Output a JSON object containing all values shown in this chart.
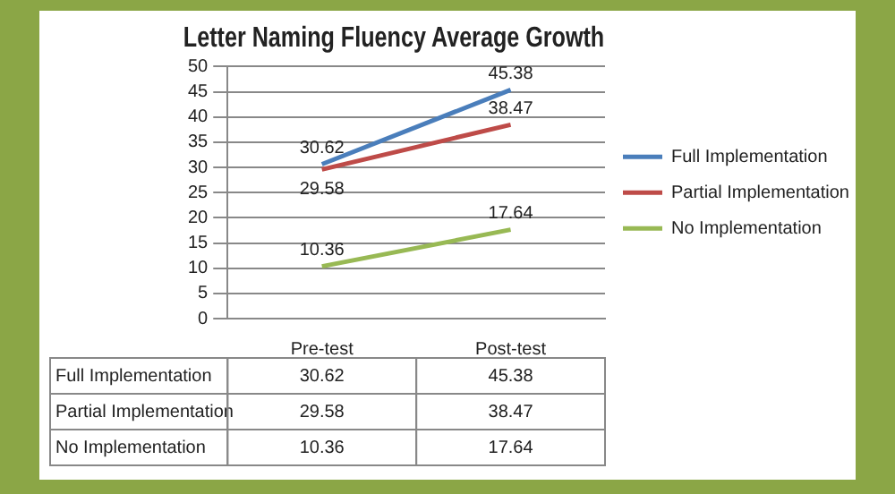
{
  "chart_data": {
    "type": "line",
    "title": "Letter Naming Fluency Average Growth",
    "categories": [
      "Pre-test",
      "Post-test"
    ],
    "series": [
      {
        "name": "Full Implementation",
        "color": "#4a7ebb",
        "values": [
          30.62,
          45.38
        ]
      },
      {
        "name": "Partial Implementation",
        "color": "#be4b48",
        "values": [
          29.58,
          38.47
        ]
      },
      {
        "name": "No Implementation",
        "color": "#98b954",
        "values": [
          10.36,
          17.64
        ]
      }
    ],
    "annotations": [
      {
        "text": "30.62",
        "x": "Pre-test",
        "y": 30.62
      },
      {
        "text": "45.38",
        "x": "Post-test",
        "y": 45.38
      },
      {
        "text": "29.58",
        "x": "Pre-test",
        "y": 29.58
      },
      {
        "text": "38.47",
        "x": "Post-test",
        "y": 38.47
      },
      {
        "text": "10.36",
        "x": "Pre-test",
        "y": 10.36
      },
      {
        "text": "17.64",
        "x": "Post-test",
        "y": 17.64
      }
    ],
    "ylim": [
      0,
      50
    ],
    "yticks": [
      0,
      5,
      10,
      15,
      20,
      25,
      30,
      35,
      40,
      45,
      50
    ],
    "grid": "y",
    "legend": "right",
    "marker": "none",
    "line_style": "solid",
    "data_labels": true
  }
}
